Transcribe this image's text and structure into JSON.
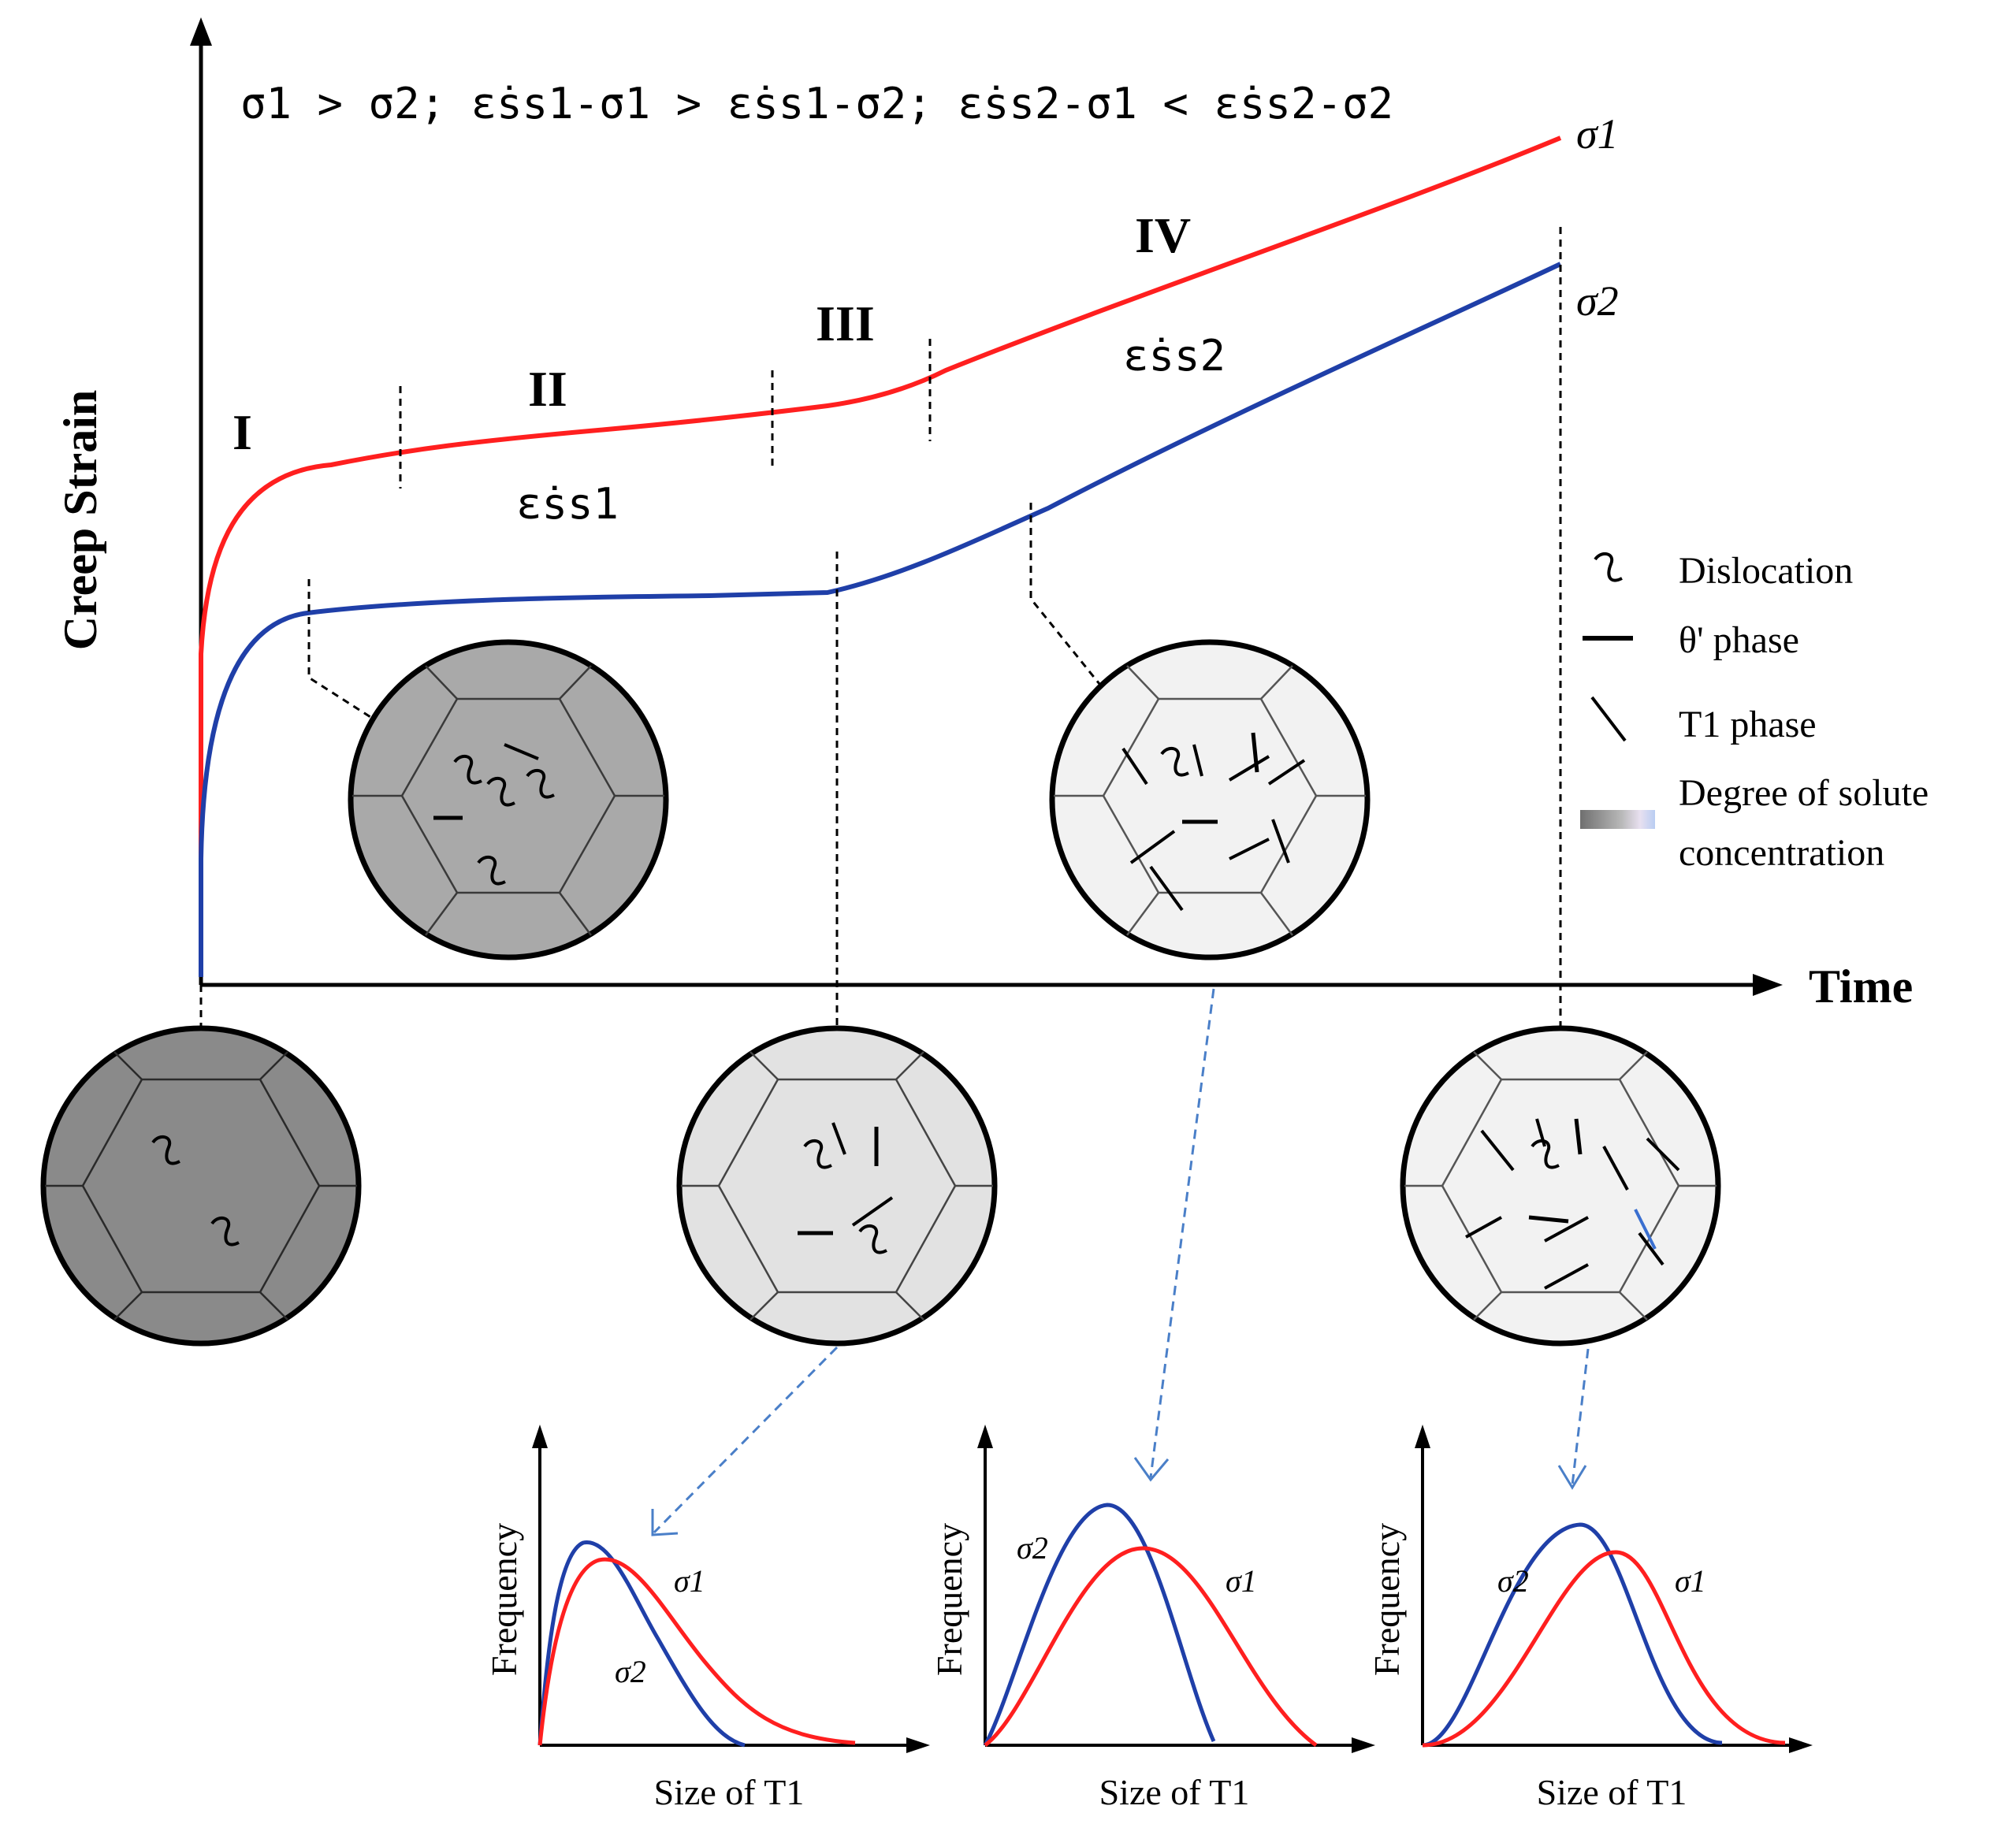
{
  "title": "σ1 > σ2; ε̇ss1-σ1 > ε̇ss1-σ2; ε̇ss2-σ1 < ε̇ss2-σ2",
  "axes": {
    "y_label": "Creep Strain",
    "x_label": "Time"
  },
  "curves": {
    "sigma1": {
      "label": "σ1",
      "color": "#ff1f1f"
    },
    "sigma2": {
      "label": "σ2",
      "color": "#1f3fa8"
    }
  },
  "stages": {
    "i": "I",
    "ii": "II",
    "iii": "III",
    "iv": "IV",
    "rate_ss1": "ε̇ss1",
    "rate_ss2": "ε̇ss2"
  },
  "legend": {
    "dislocation": "Dislocation",
    "theta_phase": "θ' phase",
    "t1_phase": "T1 phase",
    "solute_line1": "Degree of solute",
    "solute_line2": "concentration"
  },
  "histograms": [
    {
      "ylabel": "Frequency",
      "xlabel": "Size of T1",
      "sigma1_label": "σ1",
      "sigma2_label": "σ2"
    },
    {
      "ylabel": "Frequency",
      "xlabel": "Size of T1",
      "sigma1_label": "σ1",
      "sigma2_label": "σ2"
    },
    {
      "ylabel": "Frequency",
      "xlabel": "Size of T1",
      "sigma1_label": "σ1",
      "sigma2_label": "σ2"
    }
  ],
  "colors": {
    "red": "#ff1f1f",
    "blue": "#1f3fa8",
    "arrow_blue": "#4a7fc8"
  }
}
